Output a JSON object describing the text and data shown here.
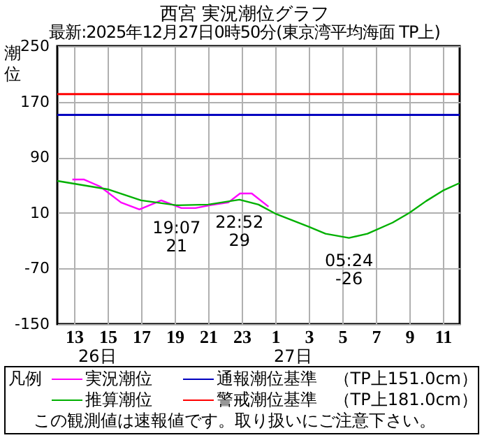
{
  "chart_data": {
    "type": "line",
    "title": "西宮 実況潮位グラフ",
    "subtitle": "最新:2025年12月27日0時50分(東京湾平均海面 TP上)",
    "ylabel": "潮位",
    "legend_title": "凡例",
    "xlim": [
      "2025-12-26T12:00",
      "2025-12-27T12:00"
    ],
    "xticks": [
      {
        "value": "2025-12-26T13:00",
        "label": "13"
      },
      {
        "value": "2025-12-26T15:00",
        "label": "15"
      },
      {
        "value": "2025-12-26T17:00",
        "label": "17"
      },
      {
        "value": "2025-12-26T19:00",
        "label": "19"
      },
      {
        "value": "2025-12-26T21:00",
        "label": "21"
      },
      {
        "value": "2025-12-26T23:00",
        "label": "23"
      },
      {
        "value": "2025-12-27T01:00",
        "label": "1"
      },
      {
        "value": "2025-12-27T03:00",
        "label": "3"
      },
      {
        "value": "2025-12-27T05:00",
        "label": "5"
      },
      {
        "value": "2025-12-27T07:00",
        "label": "7"
      },
      {
        "value": "2025-12-27T09:00",
        "label": "9"
      },
      {
        "value": "2025-12-27T11:00",
        "label": "11"
      }
    ],
    "ylim": [
      -150,
      250
    ],
    "yticks": [
      -150,
      -70,
      10,
      90,
      170,
      250
    ],
    "grid": true,
    "legend": "bottom",
    "series": [
      {
        "name": "実況潮位",
        "color": "#ff00ff",
        "x": [
          "2025-12-26T12:54",
          "2025-12-26T13:36",
          "2025-12-26T14:33",
          "2025-12-26T15:48",
          "2025-12-26T16:54",
          "2025-12-26T18:12",
          "2025-12-26T19:24",
          "2025-12-26T20:15",
          "2025-12-26T21:06",
          "2025-12-26T22:12",
          "2025-12-26T22:54",
          "2025-12-26T23:36",
          "2025-12-27T00:36"
        ],
        "values": [
          58,
          58,
          48,
          25,
          15,
          28,
          17,
          17,
          21,
          25,
          38,
          38,
          19
        ]
      },
      {
        "name": "推算潮位",
        "color": "#00b000",
        "x": [
          "2025-12-26T12:00",
          "2025-12-26T13:00",
          "2025-12-26T15:00",
          "2025-12-26T17:00",
          "2025-12-26T19:07",
          "2025-12-26T21:00",
          "2025-12-26T22:52",
          "2025-12-27T00:00",
          "2025-12-27T01:00",
          "2025-12-27T03:00",
          "2025-12-27T04:00",
          "2025-12-27T05:24",
          "2025-12-27T06:30",
          "2025-12-27T08:00",
          "2025-12-27T09:00",
          "2025-12-27T10:00",
          "2025-12-27T11:00",
          "2025-12-27T12:00"
        ],
        "values": [
          56,
          52,
          44,
          28,
          21,
          22,
          29,
          22,
          9,
          -10,
          -20,
          -26,
          -20,
          -4,
          10,
          27,
          42,
          53
        ]
      }
    ],
    "ref_lines": [
      {
        "axis": "y",
        "value": 151,
        "label": "通報潮位基準　（TP上151.0cm）",
        "color": "#0000c0"
      },
      {
        "axis": "y",
        "value": 181,
        "label": "警戒潮位基準　（TP上181.0cm）",
        "color": "#ff0000"
      }
    ],
    "annotations": [
      {
        "text": "19:07\n21",
        "x": "2025-12-26T19:07",
        "y": 21
      },
      {
        "text": "22:52\n29",
        "x": "2025-12-26T22:52",
        "y": 29
      },
      {
        "text": "05:24\n-26",
        "x": "2025-12-27T05:24",
        "y": -26
      },
      "26日",
      "27日",
      "この観測値は速報値です。取り扱いにご注意下さい。"
    ]
  }
}
